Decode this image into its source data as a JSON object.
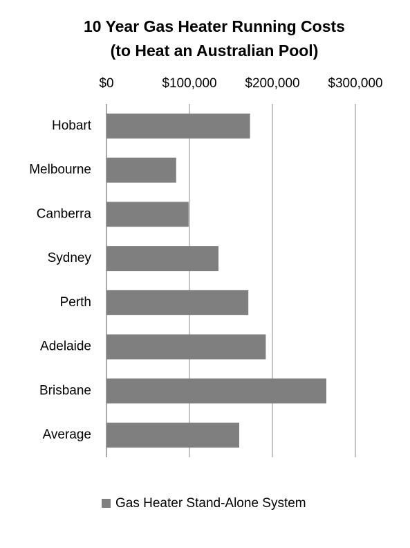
{
  "chart_data": {
    "type": "hbar",
    "title": [
      "10 Year Gas Heater Running Costs",
      "(to Heat an Australian Pool)"
    ],
    "categories": [
      "Hobart",
      "Melbourne",
      "Canberra",
      "Sydney",
      "Perth",
      "Adelaide",
      "Brisbane",
      "Average"
    ],
    "series": [
      {
        "name": "Gas Heater Stand-Alone System",
        "color": "#7f7f7f",
        "values": [
          173000,
          84000,
          99000,
          135000,
          171000,
          192000,
          265000,
          160000
        ]
      }
    ],
    "xlim": [
      0,
      300000
    ],
    "xticks": [
      {
        "value": 0,
        "label": "$0"
      },
      {
        "value": 100000,
        "label": "$100,000"
      },
      {
        "value": 200000,
        "label": "$200,000"
      },
      {
        "value": 300000,
        "label": "$300,000"
      }
    ],
    "grid": true,
    "legend": "bottom"
  }
}
